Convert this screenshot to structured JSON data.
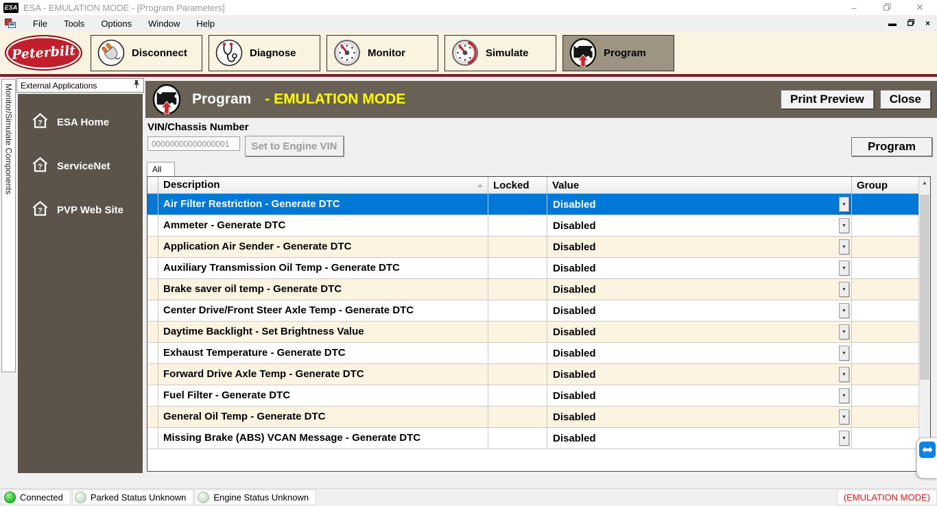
{
  "titlebar": {
    "badge": "ESA",
    "title": "ESA - EMULATION MODE - [Program Parameters]"
  },
  "menubar": {
    "items": [
      "File",
      "Tools",
      "Options",
      "Window",
      "Help"
    ]
  },
  "toolbar": {
    "brand": "Peterbilt",
    "buttons": [
      {
        "label": "Disconnect",
        "icon": "plug-icon",
        "active": false
      },
      {
        "label": "Diagnose",
        "icon": "stethoscope-icon",
        "active": false
      },
      {
        "label": "Monitor",
        "icon": "gauge-icon",
        "active": false
      },
      {
        "label": "Simulate",
        "icon": "gauge-red-icon",
        "active": false
      },
      {
        "label": "Program",
        "icon": "ecu-upload-icon",
        "active": true
      }
    ]
  },
  "dock": {
    "vertical_tab": "Monitor/Simulate Components",
    "header": "External Applications",
    "items": [
      {
        "label": "ESA Home"
      },
      {
        "label": "ServiceNet"
      },
      {
        "label": "PVP Web Site"
      }
    ]
  },
  "program_panel": {
    "title": "Program",
    "mode_suffix": "- EMULATION MODE",
    "print_preview": "Print Preview",
    "close": "Close",
    "vin_label": "VIN/Chassis Number",
    "vin_value": "00000000000000001",
    "set_engine_vin": "Set to Engine VIN",
    "program_button": "Program",
    "filter_tab": "All"
  },
  "table": {
    "headers": {
      "description": "Description",
      "locked": "Locked",
      "value": "Value",
      "group": "Group"
    },
    "rows": [
      {
        "description": "Air Filter Restriction - Generate DTC",
        "locked": "",
        "value": "Disabled",
        "group": "",
        "selected": true
      },
      {
        "description": "Ammeter - Generate DTC",
        "locked": "",
        "value": "Disabled",
        "group": "",
        "selected": false
      },
      {
        "description": "Application Air Sender - Generate DTC",
        "locked": "",
        "value": "Disabled",
        "group": "",
        "selected": false
      },
      {
        "description": "Auxiliary Transmission Oil Temp - Generate DTC",
        "locked": "",
        "value": "Disabled",
        "group": "",
        "selected": false
      },
      {
        "description": "Brake saver oil temp - Generate DTC",
        "locked": "",
        "value": "Disabled",
        "group": "",
        "selected": false
      },
      {
        "description": "Center Drive/Front Steer Axle Temp - Generate DTC",
        "locked": "",
        "value": "Disabled",
        "group": "",
        "selected": false
      },
      {
        "description": "Daytime Backlight - Set Brightness Value",
        "locked": "",
        "value": "Disabled",
        "group": "",
        "selected": false
      },
      {
        "description": "Exhaust Temperature - Generate DTC",
        "locked": "",
        "value": "Disabled",
        "group": "",
        "selected": false
      },
      {
        "description": "Forward Drive Axle Temp - Generate DTC",
        "locked": "",
        "value": "Disabled",
        "group": "",
        "selected": false
      },
      {
        "description": "Fuel Filter - Generate DTC",
        "locked": "",
        "value": "Disabled",
        "group": "",
        "selected": false
      },
      {
        "description": "General Oil Temp - Generate DTC",
        "locked": "",
        "value": "Disabled",
        "group": "",
        "selected": false
      },
      {
        "description": "Missing Brake (ABS) VCAN Message - Generate DTC",
        "locked": "",
        "value": "Disabled",
        "group": "",
        "selected": false
      }
    ]
  },
  "statusbar": {
    "connected": "Connected",
    "parked": "Parked Status Unknown",
    "engine": "Engine Status Unknown",
    "mode": "(EMULATION MODE)"
  },
  "colors": {
    "selection_blue": "#0078D7",
    "toolbar_cream": "#FAF3DF",
    "row_cream": "#FCF4E0",
    "maroon_line": "#7A2025",
    "sidebar_taupe": "#5C544A",
    "panel_header_taupe": "#6A6156",
    "active_tool_gray": "#9D9581",
    "mode_yellow": "#FFFF00",
    "emulation_red": "#FF1414",
    "connected_green": "#1DBE1D",
    "brand_red": "#C01F2B"
  }
}
